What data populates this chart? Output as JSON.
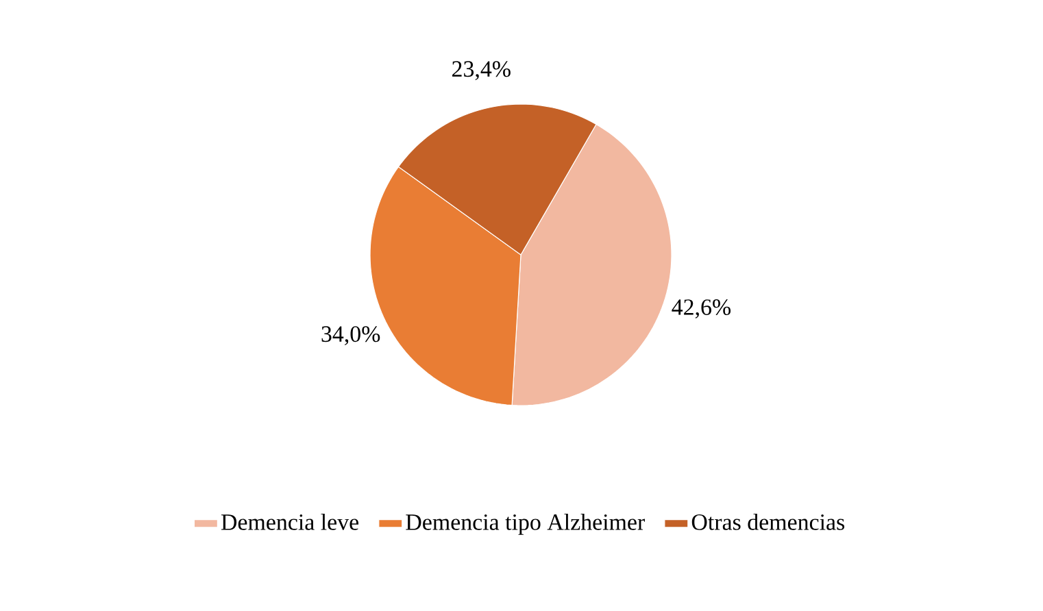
{
  "chart_data": {
    "type": "pie",
    "categories": [
      "Demencia leve",
      "Demencia tipo Alzheimer",
      "Otras demencias"
    ],
    "values": [
      42.6,
      34.0,
      23.4
    ],
    "value_labels": [
      "42,6%",
      "34,0%",
      "23,4%"
    ],
    "colors": [
      "#f2b8a0",
      "#e97d34",
      "#c46127"
    ],
    "legend": "bottom"
  }
}
